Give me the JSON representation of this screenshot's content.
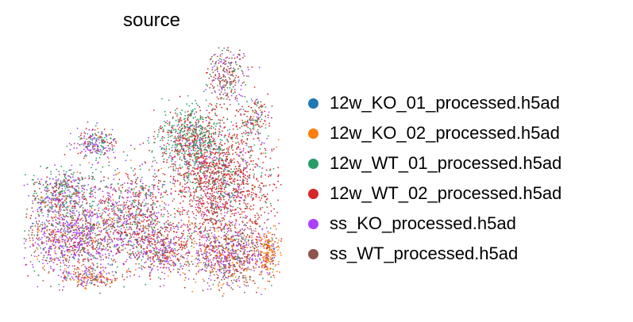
{
  "chart_data": {
    "type": "scatter",
    "title": "source",
    "xlabel": "",
    "ylabel": "",
    "axes_visible": false,
    "grid": false,
    "legend_position": "right",
    "series": [
      {
        "name": "12w_KO_01_processed.h5ad",
        "color": "#1f77b4"
      },
      {
        "name": "12w_KO_02_processed.h5ad",
        "color": "#ff7f0e"
      },
      {
        "name": "12w_WT_01_processed.h5ad",
        "color": "#279e68"
      },
      {
        "name": "12w_WT_02_processed.h5ad",
        "color": "#d62728"
      },
      {
        "name": "ss_KO_processed.h5ad",
        "color": "#aa40fc"
      },
      {
        "name": "ss_WT_processed.h5ad",
        "color": "#8c564b"
      }
    ]
  }
}
